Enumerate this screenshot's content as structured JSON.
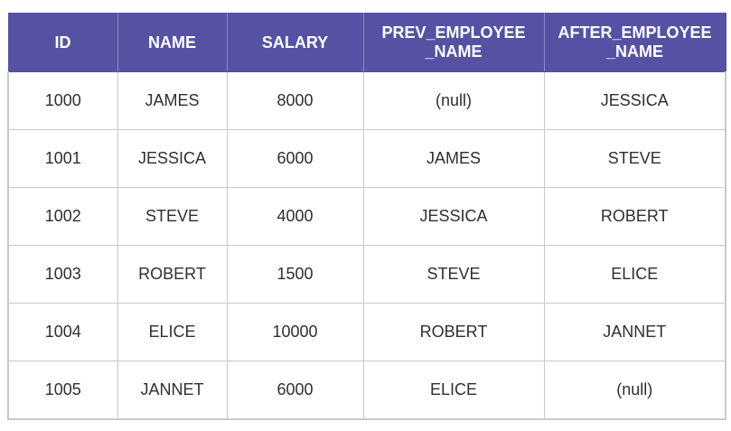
{
  "table": {
    "headers": [
      [
        "ID"
      ],
      [
        "NAME"
      ],
      [
        "SALARY"
      ],
      [
        "PREV_EMPLOYEE",
        "_NAME"
      ],
      [
        "AFTER_EMPLOYEE",
        "_NAME"
      ]
    ],
    "rows": [
      [
        "1000",
        "JAMES",
        "8000",
        "(null)",
        "JESSICA"
      ],
      [
        "1001",
        "JESSICA",
        "6000",
        "JAMES",
        "STEVE"
      ],
      [
        "1002",
        "STEVE",
        "4000",
        "JESSICA",
        "ROBERT"
      ],
      [
        "1003",
        "ROBERT",
        "1500",
        "STEVE",
        "ELICE"
      ],
      [
        "1004",
        "ELICE",
        "10000",
        "ROBERT",
        "JANNET"
      ],
      [
        "1005",
        "JANNET",
        "6000",
        "ELICE",
        "(null)"
      ]
    ]
  },
  "colors": {
    "header_bg": "#5552a3",
    "header_text": "#ffffff",
    "border": "#c8c8c8"
  }
}
